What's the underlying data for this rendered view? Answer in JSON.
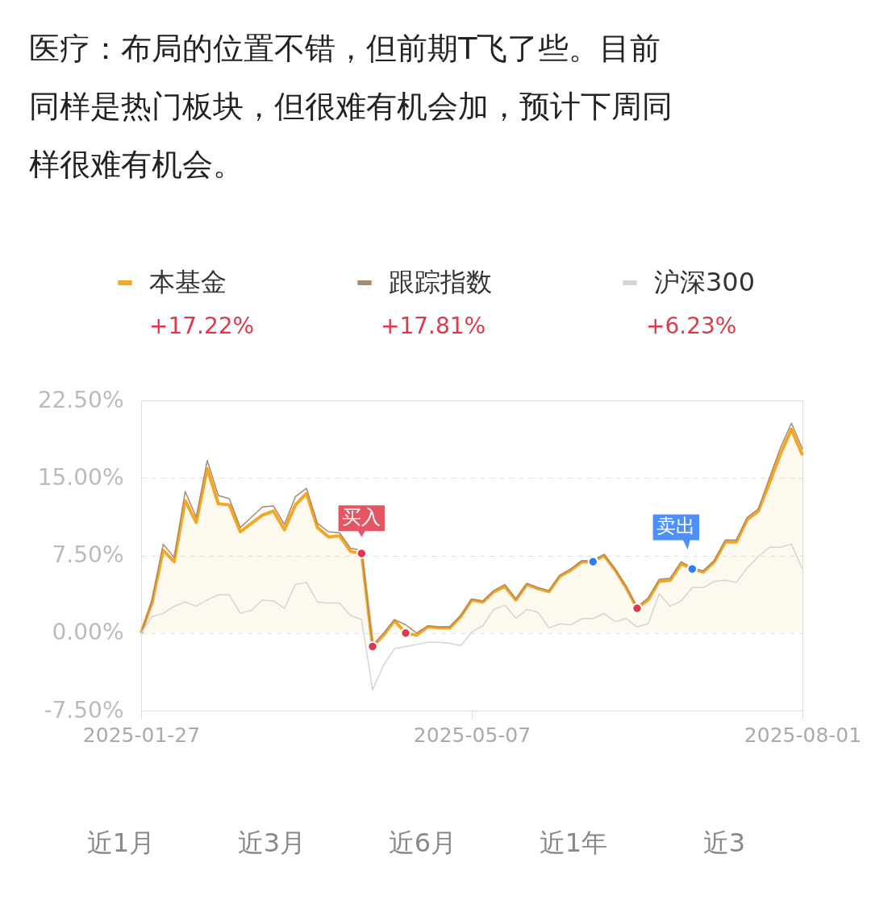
{
  "chart_data": {
    "type": "line",
    "title": "医疗：布局的位置不错，但前期T飞了些。目前同样是热门板块，但很难有机会加，预计下周同样很难有机会。",
    "categories": [
      "2025-01-27",
      null,
      null,
      null,
      null,
      null,
      null,
      null,
      null,
      null,
      null,
      null,
      null,
      null,
      null,
      null,
      null,
      null,
      null,
      null,
      null,
      null,
      null,
      null,
      null,
      null,
      null,
      null,
      null,
      null,
      "2025-05-07",
      null,
      null,
      null,
      null,
      null,
      null,
      null,
      null,
      null,
      null,
      null,
      null,
      null,
      null,
      null,
      null,
      null,
      null,
      null,
      null,
      null,
      null,
      null,
      null,
      null,
      null,
      null,
      null,
      null,
      "2025-08-01"
    ],
    "series": [
      {
        "name": "本基金",
        "type": "area",
        "color": "#f5a623",
        "values": [
          0,
          3.0,
          8.0,
          6.9,
          12.8,
          10.7,
          15.9,
          12.5,
          12.4,
          9.8,
          10.6,
          11.4,
          11.8,
          10.0,
          12.4,
          13.5,
          10.2,
          9.3,
          9.4,
          7.9,
          7.7,
          -1.3,
          -0.2,
          1.2,
          0.0,
          -0.2,
          0.6,
          0.5,
          0.5,
          1.6,
          3.2,
          3.0,
          4.0,
          4.5,
          3.2,
          4.7,
          4.3,
          4.0,
          5.5,
          6.1,
          6.9,
          6.9,
          7.5,
          6.1,
          4.4,
          2.4,
          3.2,
          5.0,
          5.1,
          6.7,
          6.2,
          5.9,
          6.9,
          8.8,
          8.8,
          11.0,
          11.8,
          14.5,
          17.3,
          19.7,
          17.2
        ]
      },
      {
        "name": "跟踪指数",
        "color": "#a88a6e",
        "values": [
          0,
          3.2,
          8.6,
          7.3,
          13.7,
          11.2,
          16.7,
          13.3,
          13.0,
          10.2,
          11.2,
          12.2,
          12.3,
          10.5,
          13.2,
          14.0,
          10.6,
          9.8,
          9.7,
          8.2,
          8.0,
          -1.2,
          0.0,
          1.3,
          0.8,
          0.0,
          0.7,
          0.6,
          0.6,
          1.7,
          3.3,
          3.1,
          4.1,
          4.7,
          3.3,
          4.8,
          4.4,
          4.1,
          5.6,
          6.2,
          7.0,
          7.0,
          7.6,
          6.2,
          4.5,
          2.5,
          3.4,
          5.2,
          5.3,
          6.9,
          6.3,
          6.0,
          7.0,
          9.0,
          9.0,
          11.2,
          12.0,
          15.0,
          17.9,
          20.3,
          17.8
        ]
      },
      {
        "name": "沪深300",
        "color": "#d4d4d4",
        "values": [
          0,
          1.6,
          1.9,
          2.6,
          3.0,
          2.6,
          3.2,
          3.7,
          3.7,
          1.9,
          2.2,
          3.2,
          3.1,
          2.4,
          4.7,
          4.9,
          3.0,
          2.9,
          2.9,
          1.7,
          1.3,
          -5.5,
          -3.1,
          -1.5,
          -1.3,
          -1.1,
          -0.9,
          -0.9,
          -1.0,
          -1.2,
          0.1,
          0.7,
          2.3,
          2.7,
          1.4,
          2.3,
          2.0,
          0.5,
          0.9,
          0.8,
          1.4,
          1.4,
          1.9,
          1.1,
          1.4,
          0.6,
          0.9,
          3.8,
          2.6,
          3.1,
          4.4,
          4.4,
          5.0,
          5.1,
          4.9,
          6.3,
          7.4,
          8.3,
          8.3,
          8.6,
          6.2
        ]
      },
      {
        "type": "scatter",
        "color": "#e0384a",
        "marker": "circle",
        "values": [
          null,
          null,
          null,
          null,
          null,
          null,
          null,
          null,
          null,
          null,
          null,
          null,
          null,
          null,
          null,
          null,
          null,
          null,
          null,
          null,
          7.7,
          -1.3,
          null,
          null,
          0.0,
          null,
          null,
          null,
          null,
          null,
          null,
          null,
          null,
          null,
          null,
          null,
          null,
          null,
          null,
          null,
          null,
          null,
          null,
          null,
          null,
          2.4,
          null,
          null,
          null,
          null,
          null,
          null,
          null,
          null,
          null,
          null,
          null,
          null,
          null,
          null,
          null
        ]
      },
      {
        "type": "scatter",
        "color": "#2e7cf6",
        "marker": "circle",
        "values": [
          null,
          null,
          null,
          null,
          null,
          null,
          null,
          null,
          null,
          null,
          null,
          null,
          null,
          null,
          null,
          null,
          null,
          null,
          null,
          null,
          null,
          null,
          null,
          null,
          null,
          null,
          null,
          null,
          null,
          null,
          null,
          null,
          null,
          null,
          null,
          null,
          null,
          null,
          null,
          null,
          null,
          6.9,
          null,
          null,
          null,
          null,
          null,
          null,
          null,
          null,
          6.2,
          null,
          null,
          null,
          null,
          null,
          null,
          null,
          null,
          null,
          null
        ]
      }
    ],
    "ylim": [
      -7.5,
      22.5
    ],
    "yticks": [
      {
        "value": -7.5,
        "label": "-7.50%"
      },
      {
        "value": 0,
        "label": "0.00%"
      },
      {
        "value": 7.5,
        "label": "7.50%"
      },
      {
        "value": 15,
        "label": "15.00%"
      },
      {
        "value": 22.5,
        "label": "22.50%"
      }
    ],
    "grid": "y",
    "legend": "top",
    "marker": "none",
    "annotations": [
      "+17.22%",
      "+17.81%",
      "+6.23%",
      {
        "text": "买入",
        "y": 7.7
      },
      {
        "text": "卖出",
        "y": 6.2
      },
      "近1月",
      "近3月",
      "近6月",
      "近1年",
      "近3"
    ]
  }
}
